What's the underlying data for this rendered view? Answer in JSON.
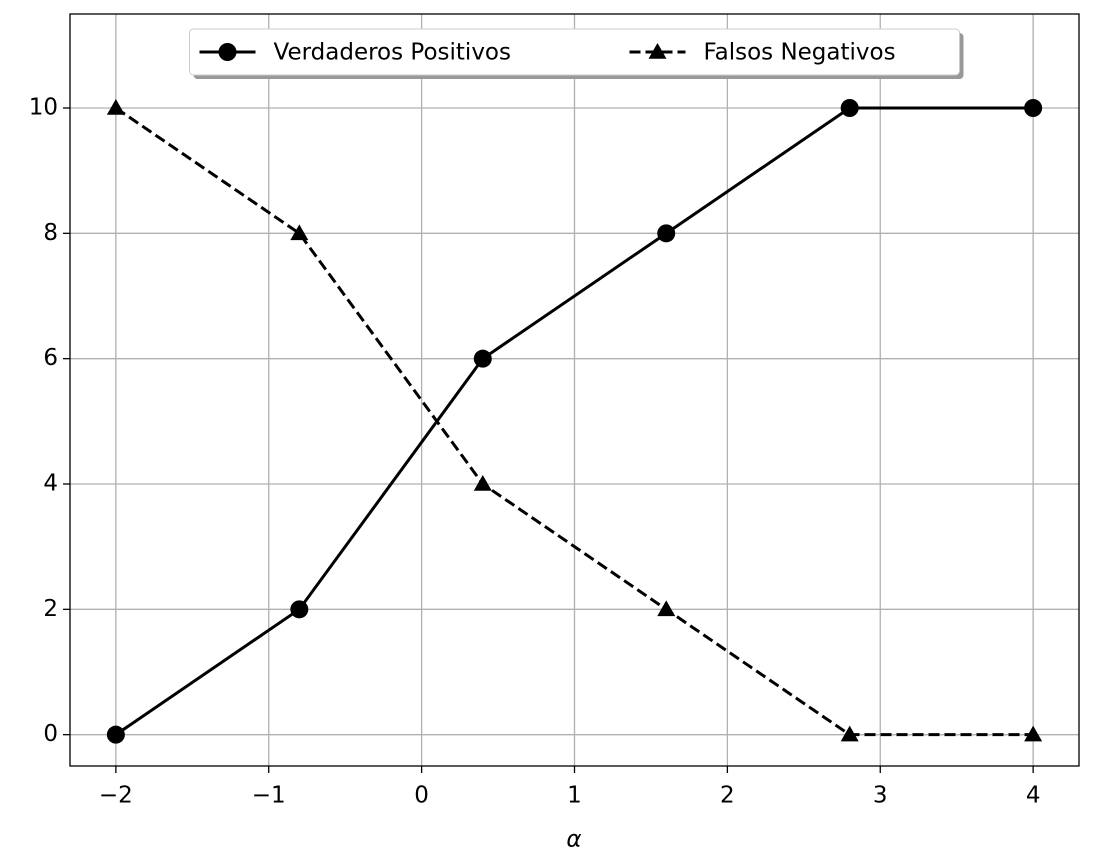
{
  "chart_data": {
    "type": "line",
    "x_label": "α",
    "x": [
      -2,
      -0.8,
      0.4,
      1.6,
      2.8,
      4
    ],
    "series": [
      {
        "name": "Verdaderos Positivos",
        "color": "#000000",
        "linestyle": "solid",
        "marker": "circle",
        "values": [
          0,
          2,
          6,
          8,
          10,
          10
        ]
      },
      {
        "name": "Falsos Negativos",
        "color": "#000000",
        "linestyle": "dashed",
        "marker": "triangle",
        "values": [
          10,
          8,
          4,
          2,
          0,
          0
        ]
      }
    ],
    "xlim": [
      -2.3,
      4.3
    ],
    "ylim": [
      -0.5,
      11.5
    ],
    "xticks": [
      {
        "value": -2,
        "label": "−2"
      },
      {
        "value": -1,
        "label": "−1"
      },
      0,
      1,
      2,
      3,
      4
    ],
    "yticks": [
      0,
      2,
      4,
      6,
      8,
      10
    ],
    "grid": true,
    "legend": "upper center"
  }
}
